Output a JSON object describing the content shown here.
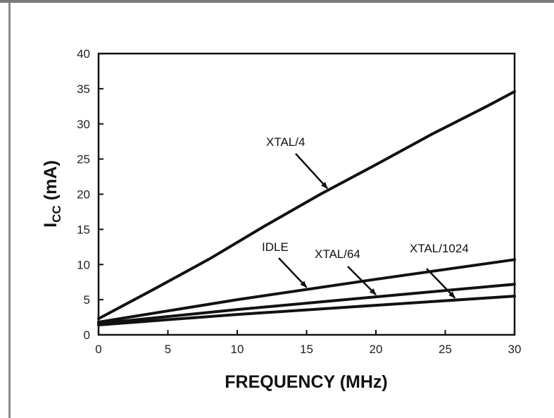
{
  "chart_data": {
    "type": "line",
    "title": "",
    "xlabel": "FREQUENCY (MHz)",
    "ylabel_main": "I",
    "ylabel_sub": "CC",
    "ylabel_unit": " (mA)",
    "xlim": [
      0,
      30
    ],
    "ylim": [
      0,
      40
    ],
    "xticks": [
      0,
      5,
      10,
      15,
      20,
      25,
      30
    ],
    "yticks": [
      0,
      5,
      10,
      15,
      20,
      25,
      30,
      35,
      40
    ],
    "grid": false,
    "series": [
      {
        "name": "XTAL/4",
        "x": [
          0,
          4,
          8,
          12,
          16,
          20,
          24,
          28,
          30
        ],
        "y": [
          2.3,
          6.5,
          10.8,
          15.5,
          20.0,
          24.2,
          28.5,
          32.5,
          34.6
        ]
      },
      {
        "name": "IDLE",
        "x": [
          0,
          10,
          20,
          30
        ],
        "y": [
          1.8,
          5.0,
          7.9,
          10.7
        ]
      },
      {
        "name": "XTAL/64",
        "x": [
          0,
          10,
          20,
          30
        ],
        "y": [
          1.6,
          3.6,
          5.4,
          7.2
        ]
      },
      {
        "name": "XTAL/1024",
        "x": [
          0,
          10,
          20,
          30
        ],
        "y": [
          1.4,
          2.9,
          4.2,
          5.5
        ]
      }
    ],
    "annotations": [
      {
        "text": "XTAL/4",
        "target": "XTAL/4"
      },
      {
        "text": "IDLE",
        "target": "IDLE"
      },
      {
        "text": "XTAL/64",
        "target": "XTAL/64"
      },
      {
        "text": "XTAL/1024",
        "target": "XTAL/1024"
      }
    ]
  }
}
